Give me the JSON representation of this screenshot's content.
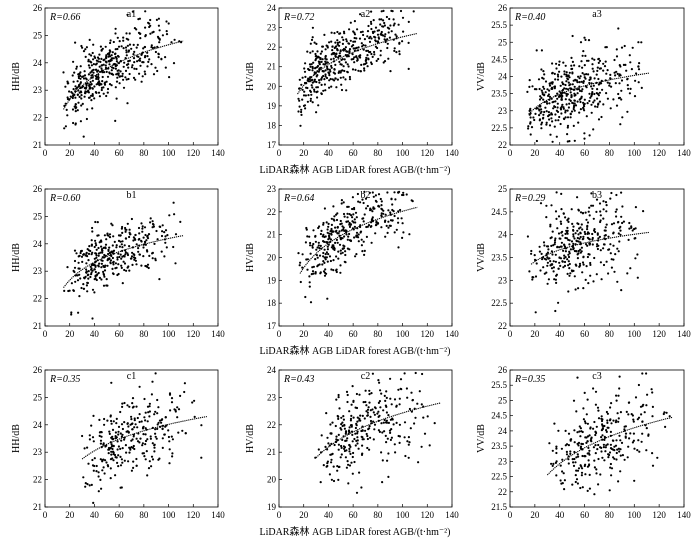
{
  "figure": {
    "row_xlabels": [
      "LiDAR森林 AGB LiDAR forest AGB/(t·hm⁻²)",
      "LiDAR森林 AGB LiDAR forest AGB/(t·hm⁻²)",
      "LiDAR森林 AGB LiDAR forest AGB/(t·hm⁻²)"
    ]
  },
  "chart_data": [
    {
      "type": "scatter",
      "id": "a1",
      "r_label": "R=0.66",
      "ylabel": "HH/dB",
      "xlim": [
        0,
        140
      ],
      "ylim": [
        21,
        26
      ],
      "xticks": [
        0,
        20,
        40,
        60,
        80,
        100,
        120,
        140
      ],
      "yticks": [
        21,
        22,
        23,
        24,
        25,
        26
      ],
      "cloud": {
        "n": 440,
        "xmin": 12,
        "xmode": 30,
        "xmax": 112,
        "noise": 0.55,
        "seed": 11
      },
      "fit": {
        "x0": 15,
        "x1": 112,
        "y0": 22.3,
        "y1": 24.8,
        "shape": "log"
      }
    },
    {
      "type": "scatter",
      "id": "a2",
      "r_label": "R=0.72",
      "ylabel": "HV/dB",
      "xlim": [
        0,
        140
      ],
      "ylim": [
        17,
        24
      ],
      "xticks": [
        0,
        20,
        40,
        60,
        80,
        100,
        120,
        140
      ],
      "yticks": [
        17,
        18,
        19,
        20,
        21,
        22,
        23,
        24
      ],
      "cloud": {
        "n": 440,
        "xmin": 12,
        "xmode": 32,
        "xmax": 112,
        "noise": 0.75,
        "seed": 23
      },
      "fit": {
        "x0": 15,
        "x1": 112,
        "y0": 19.6,
        "y1": 22.7,
        "shape": "log"
      }
    },
    {
      "type": "scatter",
      "id": "a3",
      "r_label": "R=0.40",
      "ylabel": "VV/dB",
      "xlim": [
        0,
        140
      ],
      "ylim": [
        22,
        26
      ],
      "xticks": [
        0,
        20,
        40,
        60,
        80,
        100,
        120,
        140
      ],
      "yticks": [
        22,
        22.5,
        23,
        23.5,
        24,
        24.5,
        25,
        25.5,
        26
      ],
      "cloud": {
        "n": 440,
        "xmin": 12,
        "xmode": 30,
        "xmax": 112,
        "noise": 0.55,
        "seed": 37
      },
      "fit": {
        "x0": 15,
        "x1": 112,
        "y0": 22.9,
        "y1": 24.1,
        "shape": "log"
      }
    },
    {
      "type": "scatter",
      "id": "b1",
      "r_label": "R=0.60",
      "ylabel": "HH/dB",
      "xlim": [
        0,
        140
      ],
      "ylim": [
        21,
        26
      ],
      "xticks": [
        0,
        20,
        40,
        60,
        80,
        100,
        120,
        140
      ],
      "yticks": [
        21,
        22,
        23,
        24,
        25,
        26
      ],
      "cloud": {
        "n": 360,
        "xmin": 14,
        "xmode": 40,
        "xmax": 112,
        "noise": 0.55,
        "seed": 41
      },
      "fit": {
        "x0": 15,
        "x1": 112,
        "y0": 22.4,
        "y1": 24.3,
        "shape": "log"
      }
    },
    {
      "type": "scatter",
      "id": "b2",
      "r_label": "R=0.64",
      "ylabel": "HV/dB",
      "xlim": [
        0,
        140
      ],
      "ylim": [
        17,
        23
      ],
      "xticks": [
        0,
        20,
        40,
        60,
        80,
        100,
        120,
        140
      ],
      "yticks": [
        17,
        18,
        19,
        20,
        21,
        22,
        23
      ],
      "cloud": {
        "n": 360,
        "xmin": 14,
        "xmode": 42,
        "xmax": 112,
        "noise": 0.7,
        "seed": 53
      },
      "fit": {
        "x0": 17,
        "x1": 112,
        "y0": 19.3,
        "y1": 22.2,
        "shape": "log"
      }
    },
    {
      "type": "scatter",
      "id": "b3",
      "r_label": "R=0.29",
      "ylabel": "VV/dB",
      "xlim": [
        0,
        140
      ],
      "ylim": [
        22,
        25
      ],
      "xticks": [
        0,
        20,
        40,
        60,
        80,
        100,
        120,
        140
      ],
      "yticks": [
        22,
        22.5,
        23,
        23.5,
        24,
        24.5,
        25
      ],
      "cloud": {
        "n": 360,
        "xmin": 14,
        "xmode": 42,
        "xmax": 112,
        "noise": 0.45,
        "seed": 67
      },
      "fit": {
        "x0": 17,
        "x1": 112,
        "y0": 23.35,
        "y1": 24.05,
        "shape": "log"
      }
    },
    {
      "type": "scatter",
      "id": "c1",
      "r_label": "R=0.35",
      "ylabel": "HH/dB",
      "xlim": [
        0,
        140
      ],
      "ylim": [
        21,
        26
      ],
      "xticks": [
        0,
        20,
        40,
        60,
        80,
        100,
        120,
        140
      ],
      "yticks": [
        21,
        22,
        23,
        24,
        25,
        26
      ],
      "cloud": {
        "n": 300,
        "xmin": 28,
        "xmode": 55,
        "xmax": 130,
        "noise": 0.75,
        "seed": 71
      },
      "fit": {
        "x0": 30,
        "x1": 131,
        "y0": 22.75,
        "y1": 24.3,
        "shape": "log"
      }
    },
    {
      "type": "scatter",
      "id": "c2",
      "r_label": "R=0.43",
      "ylabel": "HV/dB",
      "xlim": [
        0,
        140
      ],
      "ylim": [
        19,
        24
      ],
      "xticks": [
        0,
        20,
        40,
        60,
        80,
        100,
        120,
        140
      ],
      "yticks": [
        19,
        20,
        21,
        22,
        23,
        24
      ],
      "cloud": {
        "n": 300,
        "xmin": 28,
        "xmode": 55,
        "xmax": 130,
        "noise": 0.8,
        "seed": 83
      },
      "fit": {
        "x0": 30,
        "x1": 131,
        "y0": 20.8,
        "y1": 22.8,
        "shape": "log"
      }
    },
    {
      "type": "scatter",
      "id": "c3",
      "r_label": "R=0.35",
      "ylabel": "VV/dB",
      "xlim": [
        0,
        140
      ],
      "ylim": [
        21.5,
        26
      ],
      "xticks": [
        0,
        20,
        40,
        60,
        80,
        100,
        120,
        140
      ],
      "yticks": [
        21.5,
        22,
        22.5,
        23,
        23.5,
        24,
        24.5,
        25,
        25.5,
        26
      ],
      "cloud": {
        "n": 300,
        "xmin": 28,
        "xmode": 60,
        "xmax": 130,
        "noise": 0.75,
        "seed": 97
      },
      "fit": {
        "x0": 30,
        "x1": 131,
        "y0": 22.55,
        "y1": 24.45,
        "shape": "log"
      }
    }
  ]
}
